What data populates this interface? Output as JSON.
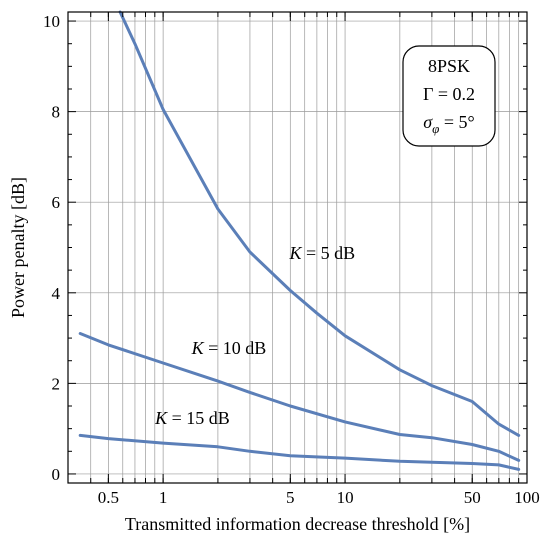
{
  "chart_data": {
    "type": "line",
    "xlabel": "Transmitted information decrease threshold [%]",
    "ylabel": "Power penalty [dB]",
    "x_scale": "log",
    "xlim": [
      0.3,
      100
    ],
    "ylim": [
      -0.2,
      10.2
    ],
    "grid": true,
    "x_ticks": [
      {
        "value": 0.5,
        "label": "0.5"
      },
      {
        "value": 1,
        "label": "1"
      },
      {
        "value": 5,
        "label": "5"
      },
      {
        "value": 10,
        "label": "10"
      },
      {
        "value": 50,
        "label": "50"
      },
      {
        "value": 100,
        "label": "100"
      }
    ],
    "y_ticks": [
      {
        "value": 0,
        "label": "0"
      },
      {
        "value": 2,
        "label": "2"
      },
      {
        "value": 4,
        "label": "4"
      },
      {
        "value": 6,
        "label": "6"
      },
      {
        "value": 8,
        "label": "8"
      },
      {
        "value": 10,
        "label": "10"
      }
    ],
    "line_color": "#5b7fb8",
    "series": [
      {
        "label_k": "K",
        "label_rest": " = 5 dB",
        "label_at": {
          "x": 7.5,
          "y": 4.75
        },
        "points": [
          [
            0.58,
            10.2
          ],
          [
            0.7,
            9.5
          ],
          [
            1,
            8.05
          ],
          [
            2,
            5.85
          ],
          [
            3,
            4.9
          ],
          [
            5,
            4.05
          ],
          [
            7,
            3.55
          ],
          [
            10,
            3.05
          ],
          [
            20,
            2.3
          ],
          [
            30,
            1.95
          ],
          [
            50,
            1.6
          ],
          [
            70,
            1.1
          ],
          [
            90,
            0.85
          ]
        ]
      },
      {
        "label_k": "K",
        "label_rest": " = 10 dB",
        "label_at": {
          "x": 2.3,
          "y": 2.65
        },
        "points": [
          [
            0.35,
            3.1
          ],
          [
            0.5,
            2.85
          ],
          [
            1,
            2.45
          ],
          [
            2,
            2.05
          ],
          [
            3,
            1.8
          ],
          [
            5,
            1.5
          ],
          [
            10,
            1.15
          ],
          [
            20,
            0.87
          ],
          [
            30,
            0.8
          ],
          [
            50,
            0.65
          ],
          [
            70,
            0.5
          ],
          [
            90,
            0.3
          ]
        ]
      },
      {
        "label_k": "K",
        "label_rest": " = 15 dB",
        "label_at": {
          "x": 1.45,
          "y": 1.1
        },
        "points": [
          [
            0.35,
            0.85
          ],
          [
            0.5,
            0.78
          ],
          [
            1,
            0.68
          ],
          [
            2,
            0.6
          ],
          [
            3,
            0.5
          ],
          [
            5,
            0.4
          ],
          [
            10,
            0.35
          ],
          [
            20,
            0.28
          ],
          [
            50,
            0.23
          ],
          [
            70,
            0.2
          ],
          [
            90,
            0.1
          ]
        ]
      }
    ],
    "legend_box": {
      "placement": "top-right",
      "line1": "8PSK",
      "line2_sym": "Γ",
      "line2_rest": " = 0.2",
      "line3_sym": "σ",
      "line3_sub": "φ",
      "line3_rest": " = 5°"
    }
  }
}
